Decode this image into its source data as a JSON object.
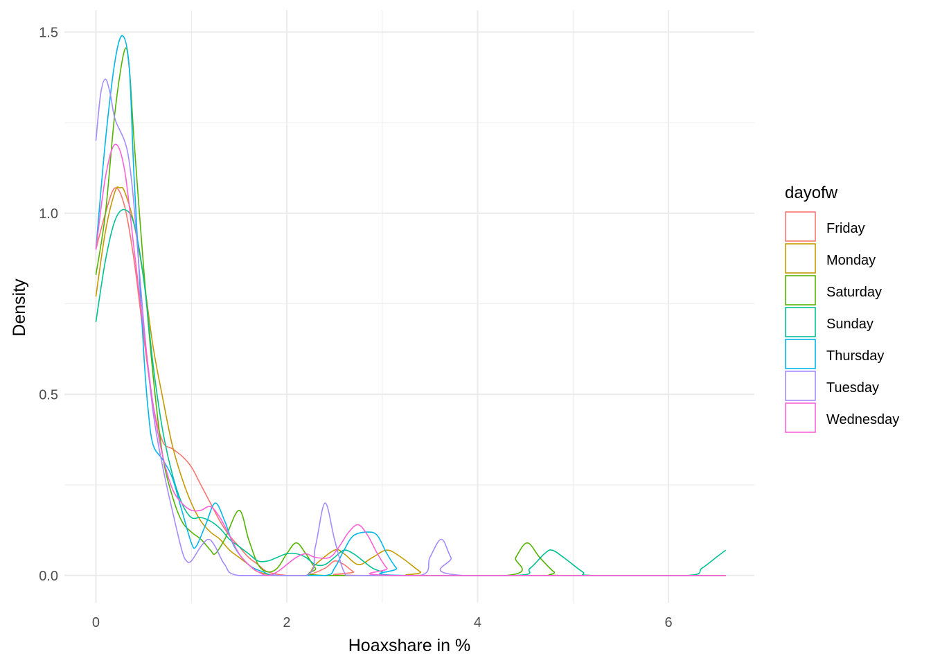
{
  "chart_data": {
    "type": "line",
    "title": "",
    "xlabel": "Hoaxshare in %",
    "ylabel": "Density",
    "xlim": [
      -0.33,
      6.9
    ],
    "ylim": [
      -0.075,
      1.56
    ],
    "xticks": [
      0,
      2,
      4,
      6
    ],
    "yticks": [
      0.0,
      0.5,
      1.0,
      1.5
    ],
    "xtick_labels": [
      "0",
      "2",
      "4",
      "6"
    ],
    "ytick_labels": [
      "0.0",
      "0.5",
      "1.0",
      "1.5"
    ],
    "grid": true,
    "legend": {
      "title": "dayofw",
      "position": "right"
    },
    "series": [
      {
        "name": "Friday",
        "color": "#F8766D",
        "points": [
          [
            0,
            0.9
          ],
          [
            0.1,
            1.0
          ],
          [
            0.2,
            1.07
          ],
          [
            0.3,
            1.02
          ],
          [
            0.4,
            0.87
          ],
          [
            0.5,
            0.66
          ],
          [
            0.6,
            0.47
          ],
          [
            0.7,
            0.37
          ],
          [
            0.8,
            0.35
          ],
          [
            0.9,
            0.33
          ],
          [
            1.0,
            0.3
          ],
          [
            1.1,
            0.25
          ],
          [
            1.2,
            0.2
          ],
          [
            1.3,
            0.15
          ],
          [
            1.4,
            0.11
          ],
          [
            1.5,
            0.08
          ],
          [
            1.6,
            0.05
          ],
          [
            1.7,
            0.03
          ],
          [
            1.8,
            0.01
          ],
          [
            2.0,
            0.0
          ],
          [
            2.2,
            0.0
          ],
          [
            2.4,
            0.02
          ],
          [
            2.5,
            0.04
          ],
          [
            2.6,
            0.03
          ],
          [
            2.7,
            0.01
          ],
          [
            2.8,
            0.0
          ],
          [
            6.6,
            0.0
          ]
        ]
      },
      {
        "name": "Monday",
        "color": "#C49A00",
        "points": [
          [
            0,
            0.77
          ],
          [
            0.1,
            0.95
          ],
          [
            0.2,
            1.06
          ],
          [
            0.25,
            1.07
          ],
          [
            0.3,
            1.06
          ],
          [
            0.4,
            0.97
          ],
          [
            0.5,
            0.82
          ],
          [
            0.6,
            0.63
          ],
          [
            0.7,
            0.49
          ],
          [
            0.8,
            0.36
          ],
          [
            0.9,
            0.27
          ],
          [
            1.0,
            0.2
          ],
          [
            1.1,
            0.15
          ],
          [
            1.2,
            0.12
          ],
          [
            1.3,
            0.1
          ],
          [
            1.4,
            0.07
          ],
          [
            1.5,
            0.05
          ],
          [
            1.6,
            0.03
          ],
          [
            1.7,
            0.01
          ],
          [
            1.9,
            0.0
          ],
          [
            2.2,
            0.0
          ],
          [
            2.3,
            0.03
          ],
          [
            2.5,
            0.07
          ],
          [
            2.6,
            0.06
          ],
          [
            2.75,
            0.03
          ],
          [
            2.9,
            0.05
          ],
          [
            3.05,
            0.07
          ],
          [
            3.2,
            0.05
          ],
          [
            3.4,
            0.01
          ],
          [
            3.5,
            0.0
          ],
          [
            6.6,
            0.0
          ]
        ]
      },
      {
        "name": "Saturday",
        "color": "#53B400",
        "points": [
          [
            0,
            0.83
          ],
          [
            0.1,
            1.0
          ],
          [
            0.2,
            1.28
          ],
          [
            0.3,
            1.45
          ],
          [
            0.35,
            1.4
          ],
          [
            0.4,
            1.2
          ],
          [
            0.5,
            0.85
          ],
          [
            0.6,
            0.55
          ],
          [
            0.7,
            0.33
          ],
          [
            0.8,
            0.22
          ],
          [
            0.9,
            0.15
          ],
          [
            1.0,
            0.12
          ],
          [
            1.1,
            0.1
          ],
          [
            1.2,
            0.07
          ],
          [
            1.25,
            0.06
          ],
          [
            1.35,
            0.1
          ],
          [
            1.5,
            0.18
          ],
          [
            1.6,
            0.1
          ],
          [
            1.7,
            0.03
          ],
          [
            1.8,
            0.01
          ],
          [
            1.9,
            0.02
          ],
          [
            2.0,
            0.06
          ],
          [
            2.1,
            0.09
          ],
          [
            2.2,
            0.06
          ],
          [
            2.3,
            0.02
          ],
          [
            2.4,
            0.0
          ],
          [
            4.3,
            0.0
          ],
          [
            4.4,
            0.05
          ],
          [
            4.52,
            0.09
          ],
          [
            4.65,
            0.05
          ],
          [
            4.8,
            0.01
          ],
          [
            4.9,
            0.0
          ],
          [
            6.6,
            0.0
          ]
        ]
      },
      {
        "name": "Sunday",
        "color": "#00C094",
        "points": [
          [
            0,
            0.7
          ],
          [
            0.1,
            0.87
          ],
          [
            0.2,
            0.98
          ],
          [
            0.3,
            1.01
          ],
          [
            0.4,
            0.97
          ],
          [
            0.5,
            0.82
          ],
          [
            0.6,
            0.58
          ],
          [
            0.7,
            0.4
          ],
          [
            0.8,
            0.28
          ],
          [
            0.9,
            0.2
          ],
          [
            1.0,
            0.16
          ],
          [
            1.1,
            0.16
          ],
          [
            1.2,
            0.15
          ],
          [
            1.3,
            0.13
          ],
          [
            1.4,
            0.1
          ],
          [
            1.5,
            0.08
          ],
          [
            1.6,
            0.06
          ],
          [
            1.7,
            0.04
          ],
          [
            1.8,
            0.04
          ],
          [
            1.9,
            0.05
          ],
          [
            2.0,
            0.06
          ],
          [
            2.1,
            0.06
          ],
          [
            2.2,
            0.05
          ],
          [
            2.3,
            0.03
          ],
          [
            2.4,
            0.03
          ],
          [
            2.5,
            0.05
          ],
          [
            2.6,
            0.07
          ],
          [
            2.7,
            0.06
          ],
          [
            2.8,
            0.04
          ],
          [
            2.9,
            0.02
          ],
          [
            3.0,
            0.01
          ],
          [
            3.1,
            0.0
          ],
          [
            4.4,
            0.0
          ],
          [
            4.55,
            0.02
          ],
          [
            4.7,
            0.06
          ],
          [
            4.78,
            0.07
          ],
          [
            4.9,
            0.05
          ],
          [
            5.1,
            0.01
          ],
          [
            5.2,
            0.0
          ],
          [
            6.2,
            0.0
          ],
          [
            6.35,
            0.02
          ],
          [
            6.5,
            0.05
          ],
          [
            6.6,
            0.07
          ]
        ]
      },
      {
        "name": "Thursday",
        "color": "#00B6EB",
        "points": [
          [
            0,
            0.9
          ],
          [
            0.1,
            1.2
          ],
          [
            0.2,
            1.42
          ],
          [
            0.28,
            1.49
          ],
          [
            0.35,
            1.4
          ],
          [
            0.4,
            1.1
          ],
          [
            0.5,
            0.62
          ],
          [
            0.55,
            0.45
          ],
          [
            0.6,
            0.36
          ],
          [
            0.7,
            0.32
          ],
          [
            0.8,
            0.27
          ],
          [
            0.9,
            0.18
          ],
          [
            1.0,
            0.09
          ],
          [
            1.05,
            0.08
          ],
          [
            1.15,
            0.14
          ],
          [
            1.25,
            0.2
          ],
          [
            1.35,
            0.15
          ],
          [
            1.45,
            0.08
          ],
          [
            1.6,
            0.03
          ],
          [
            1.75,
            0.01
          ],
          [
            1.9,
            0.0
          ],
          [
            2.4,
            0.0
          ],
          [
            2.5,
            0.02
          ],
          [
            2.6,
            0.07
          ],
          [
            2.7,
            0.11
          ],
          [
            2.85,
            0.12
          ],
          [
            2.95,
            0.11
          ],
          [
            3.05,
            0.06
          ],
          [
            3.15,
            0.02
          ],
          [
            3.25,
            0.0
          ],
          [
            6.6,
            0.0
          ]
        ]
      },
      {
        "name": "Tuesday",
        "color": "#A58AFF",
        "points": [
          [
            0,
            1.2
          ],
          [
            0.05,
            1.33
          ],
          [
            0.1,
            1.37
          ],
          [
            0.15,
            1.33
          ],
          [
            0.2,
            1.26
          ],
          [
            0.3,
            1.2
          ],
          [
            0.35,
            1.14
          ],
          [
            0.4,
            1.02
          ],
          [
            0.5,
            0.7
          ],
          [
            0.6,
            0.45
          ],
          [
            0.7,
            0.3
          ],
          [
            0.8,
            0.18
          ],
          [
            0.9,
            0.07
          ],
          [
            0.95,
            0.04
          ],
          [
            1.0,
            0.04
          ],
          [
            1.1,
            0.08
          ],
          [
            1.18,
            0.1
          ],
          [
            1.25,
            0.08
          ],
          [
            1.35,
            0.03
          ],
          [
            1.5,
            0.0
          ],
          [
            2.2,
            0.0
          ],
          [
            2.3,
            0.08
          ],
          [
            2.4,
            0.2
          ],
          [
            2.5,
            0.1
          ],
          [
            2.6,
            0.01
          ],
          [
            2.7,
            0.0
          ],
          [
            3.4,
            0.0
          ],
          [
            3.5,
            0.05
          ],
          [
            3.62,
            0.1
          ],
          [
            3.72,
            0.05
          ],
          [
            3.85,
            0.0
          ],
          [
            6.6,
            0.0
          ]
        ]
      },
      {
        "name": "Wednesday",
        "color": "#FB61D7",
        "points": [
          [
            0,
            0.9
          ],
          [
            0.1,
            1.1
          ],
          [
            0.2,
            1.19
          ],
          [
            0.3,
            1.12
          ],
          [
            0.4,
            0.9
          ],
          [
            0.5,
            0.68
          ],
          [
            0.6,
            0.47
          ],
          [
            0.7,
            0.33
          ],
          [
            0.8,
            0.24
          ],
          [
            0.9,
            0.2
          ],
          [
            1.0,
            0.18
          ],
          [
            1.1,
            0.18
          ],
          [
            1.2,
            0.19
          ],
          [
            1.3,
            0.16
          ],
          [
            1.4,
            0.11
          ],
          [
            1.5,
            0.06
          ],
          [
            1.6,
            0.03
          ],
          [
            1.7,
            0.01
          ],
          [
            1.8,
            0.0
          ],
          [
            1.9,
            0.01
          ],
          [
            2.0,
            0.03
          ],
          [
            2.1,
            0.05
          ],
          [
            2.2,
            0.06
          ],
          [
            2.3,
            0.05
          ],
          [
            2.45,
            0.05
          ],
          [
            2.55,
            0.08
          ],
          [
            2.65,
            0.12
          ],
          [
            2.75,
            0.14
          ],
          [
            2.85,
            0.11
          ],
          [
            2.95,
            0.06
          ],
          [
            3.05,
            0.02
          ],
          [
            3.15,
            0.0
          ],
          [
            6.6,
            0.0
          ]
        ]
      }
    ]
  }
}
